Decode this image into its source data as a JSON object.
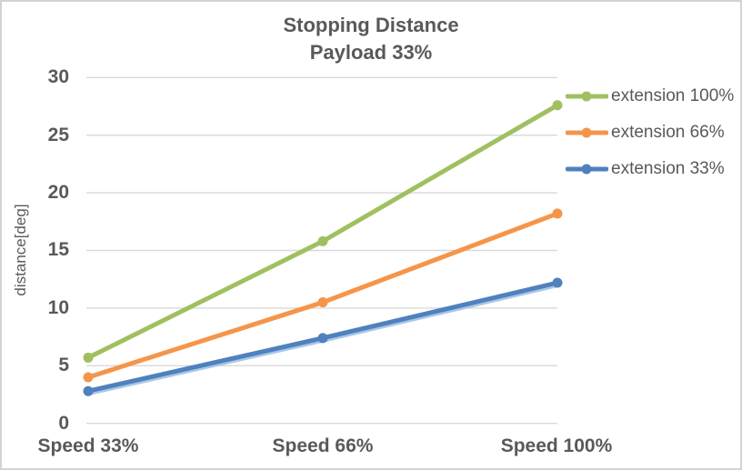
{
  "chart_data": {
    "type": "line",
    "title": "Stopping Distance",
    "subtitle": "Payload 33%",
    "categories": [
      "Speed 33%",
      "Speed 66%",
      "Speed 100%"
    ],
    "series": [
      {
        "name": "extension 100%",
        "values": [
          5.7,
          15.8,
          27.6
        ],
        "color": "#A0C060"
      },
      {
        "name": "extension 66%",
        "values": [
          4.0,
          10.5,
          18.2
        ],
        "color": "#F5954A"
      },
      {
        "name": "extension 33%",
        "values": [
          2.8,
          7.4,
          12.2
        ],
        "color": "#4F81BD",
        "shadow_color": "#A9C7E9"
      }
    ],
    "xlabel": "",
    "ylabel": "distance[deg]",
    "ylim": [
      0,
      30
    ],
    "ytick_step": 5,
    "yticks": [
      "0",
      "5",
      "10",
      "15",
      "20",
      "25",
      "30"
    ],
    "grid": "horizontal",
    "legend_position": "right",
    "colors": {
      "text": "#595959",
      "gridline": "#D9D9D9",
      "border": "#D3D3D3",
      "background": "#FFFFFF"
    }
  }
}
